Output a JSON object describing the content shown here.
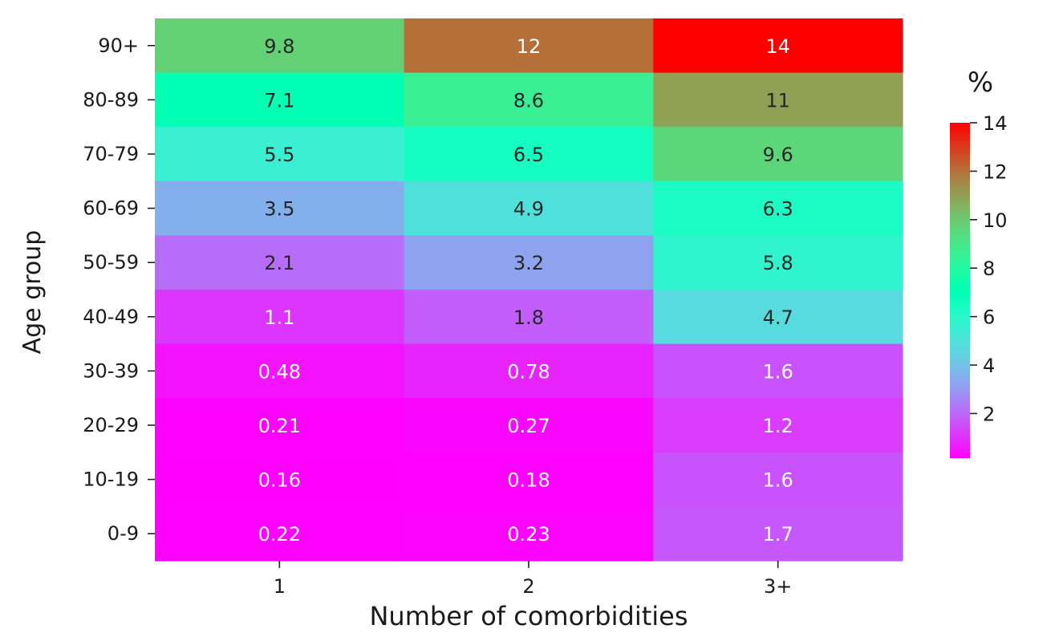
{
  "chart_data": {
    "type": "heatmap",
    "title": "",
    "xlabel": "Number of comorbidities",
    "ylabel": "Age group",
    "x_categories": [
      "1",
      "2",
      "3+"
    ],
    "y_categories": [
      "90+",
      "80-89",
      "70-79",
      "60-69",
      "50-59",
      "40-49",
      "30-39",
      "20-29",
      "10-19",
      "0-9"
    ],
    "values": [
      [
        9.8,
        12,
        14
      ],
      [
        7.1,
        8.6,
        11
      ],
      [
        5.5,
        6.5,
        9.6
      ],
      [
        3.5,
        4.9,
        6.3
      ],
      [
        2.1,
        3.2,
        5.8
      ],
      [
        1.1,
        1.8,
        4.7
      ],
      [
        0.48,
        0.78,
        1.6
      ],
      [
        0.21,
        0.27,
        1.2
      ],
      [
        0.16,
        0.18,
        1.6
      ],
      [
        0.22,
        0.23,
        1.7
      ]
    ],
    "value_labels": [
      [
        "9.8",
        "12",
        "14"
      ],
      [
        "7.1",
        "8.6",
        "11"
      ],
      [
        "5.5",
        "6.5",
        "9.6"
      ],
      [
        "3.5",
        "4.9",
        "6.3"
      ],
      [
        "2.1",
        "3.2",
        "5.8"
      ],
      [
        "1.1",
        "1.8",
        "4.7"
      ],
      [
        "0.48",
        "0.78",
        "1.6"
      ],
      [
        "0.21",
        "0.27",
        "1.2"
      ],
      [
        "0.16",
        "0.18",
        "1.6"
      ],
      [
        "0.22",
        "0.23",
        "1.7"
      ]
    ],
    "colormap": "rainbow",
    "color_range": [
      0.16,
      14
    ],
    "colorbar": {
      "title": "%",
      "ticks": [
        2,
        4,
        6,
        8,
        10,
        12,
        14
      ],
      "tick_labels": [
        "2",
        "4",
        "6",
        "8",
        "10",
        "12",
        "14"
      ],
      "placement": "right"
    },
    "grid": false
  }
}
